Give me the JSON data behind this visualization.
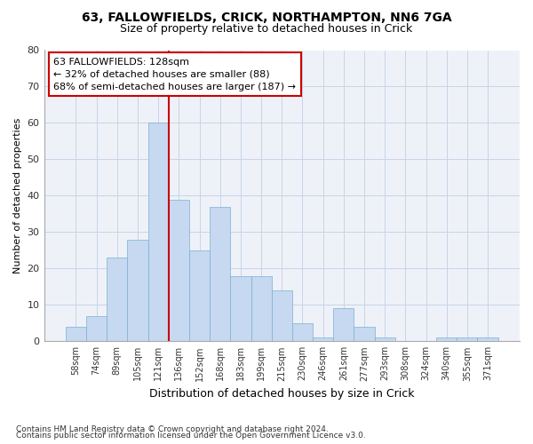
{
  "title1": "63, FALLOWFIELDS, CRICK, NORTHAMPTON, NN6 7GA",
  "title2": "Size of property relative to detached houses in Crick",
  "xlabel": "Distribution of detached houses by size in Crick",
  "ylabel": "Number of detached properties",
  "bin_labels": [
    "58sqm",
    "74sqm",
    "89sqm",
    "105sqm",
    "121sqm",
    "136sqm",
    "152sqm",
    "168sqm",
    "183sqm",
    "199sqm",
    "215sqm",
    "230sqm",
    "246sqm",
    "261sqm",
    "277sqm",
    "293sqm",
    "308sqm",
    "324sqm",
    "340sqm",
    "355sqm",
    "371sqm"
  ],
  "bar_values": [
    4,
    7,
    23,
    28,
    60,
    39,
    25,
    37,
    18,
    18,
    14,
    5,
    1,
    9,
    4,
    1,
    0,
    0,
    1,
    1,
    1
  ],
  "bar_color": "#c6d9f0",
  "bar_edge_color": "#7bafd4",
  "vline_x_index": 4,
  "vline_color": "#cc0000",
  "ylim": [
    0,
    80
  ],
  "yticks": [
    0,
    10,
    20,
    30,
    40,
    50,
    60,
    70,
    80
  ],
  "annotation_text": "63 FALLOWFIELDS: 128sqm\n← 32% of detached houses are smaller (88)\n68% of semi-detached houses are larger (187) →",
  "annotation_box_color": "white",
  "annotation_box_edge": "#cc0000",
  "footer1": "Contains HM Land Registry data © Crown copyright and database right 2024.",
  "footer2": "Contains public sector information licensed under the Open Government Licence v3.0.",
  "grid_color": "#c8d4e8",
  "bg_color": "#eef2f8"
}
